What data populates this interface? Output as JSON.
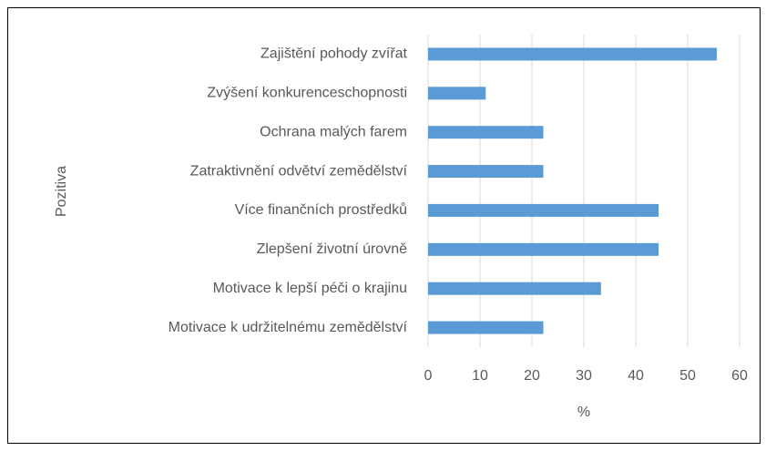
{
  "chart_data": {
    "type": "bar",
    "orientation": "horizontal",
    "y_axis_label": "Pozitiva",
    "x_axis_label": "%",
    "categories": [
      "Zajištění pohody zvířat",
      "Zvýšení konkurenceschopnosti",
      "Ochrana malých farem",
      "Zatraktivnění odvětví zemědělství",
      "Více finančních prostředků",
      "Zlepšení životní úrovně",
      "Motivace k lepší péči o krajinu",
      "Motivace k udržitelnému zemědělství"
    ],
    "values": [
      55.6,
      11.1,
      22.2,
      22.2,
      44.4,
      44.4,
      33.3,
      22.2
    ],
    "color": "#5b9bd5",
    "xlim": [
      0,
      60
    ],
    "xticks": [
      0,
      10,
      20,
      30,
      40,
      50,
      60
    ],
    "grid": true
  }
}
